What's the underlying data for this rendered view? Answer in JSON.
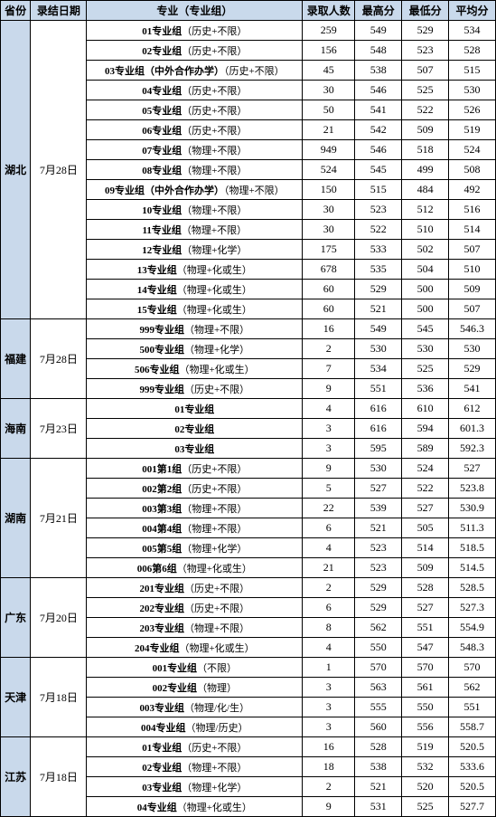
{
  "headers": [
    "省份",
    "录结日期",
    "专业（专业组）",
    "录取人数",
    "最高分",
    "最低分",
    "平均分"
  ],
  "provinces": [
    {
      "name": "湖北",
      "date": "7月28日",
      "rows": [
        {
          "maj": "01专业组",
          "req": "（历史+不限）",
          "n": 259,
          "hi": 549,
          "lo": 529,
          "avg": 534
        },
        {
          "maj": "02专业组",
          "req": "（历史+不限）",
          "n": 156,
          "hi": 548,
          "lo": 523,
          "avg": 528
        },
        {
          "maj": "03专业组（中外合作办学）",
          "req": "（历史+不限）",
          "n": 45,
          "hi": 538,
          "lo": 507,
          "avg": 515
        },
        {
          "maj": "04专业组",
          "req": "（历史+不限）",
          "n": 30,
          "hi": 546,
          "lo": 525,
          "avg": 530
        },
        {
          "maj": "05专业组",
          "req": "（历史+不限）",
          "n": 50,
          "hi": 541,
          "lo": 522,
          "avg": 526
        },
        {
          "maj": "06专业组",
          "req": "（历史+不限）",
          "n": 21,
          "hi": 542,
          "lo": 509,
          "avg": 519
        },
        {
          "maj": "07专业组",
          "req": "（物理+不限）",
          "n": 949,
          "hi": 546,
          "lo": 518,
          "avg": 524
        },
        {
          "maj": "08专业组",
          "req": "（物理+不限）",
          "n": 524,
          "hi": 545,
          "lo": 499,
          "avg": 508
        },
        {
          "maj": "09专业组（中外合作办学）",
          "req": "（物理+不限）",
          "n": 150,
          "hi": 515,
          "lo": 484,
          "avg": 492
        },
        {
          "maj": "10专业组",
          "req": "（物理+不限）",
          "n": 30,
          "hi": 523,
          "lo": 512,
          "avg": 516
        },
        {
          "maj": "11专业组",
          "req": "（物理+不限）",
          "n": 30,
          "hi": 522,
          "lo": 510,
          "avg": 514
        },
        {
          "maj": "12专业组",
          "req": "（物理+化学）",
          "n": 175,
          "hi": 533,
          "lo": 502,
          "avg": 507
        },
        {
          "maj": "13专业组",
          "req": "（物理+化或生）",
          "n": 678,
          "hi": 535,
          "lo": 504,
          "avg": 510
        },
        {
          "maj": "14专业组",
          "req": "（物理+化或生）",
          "n": 60,
          "hi": 529,
          "lo": 500,
          "avg": 509
        },
        {
          "maj": "15专业组",
          "req": "（物理+化或生）",
          "n": 60,
          "hi": 521,
          "lo": 500,
          "avg": 507
        }
      ]
    },
    {
      "name": "福建",
      "date": "7月28日",
      "rows": [
        {
          "maj": "999专业组",
          "req": "（物理+不限）",
          "n": 16,
          "hi": 549,
          "lo": 545,
          "avg": "546.3"
        },
        {
          "maj": "500专业组",
          "req": "（物理+化学）",
          "n": 2,
          "hi": 530,
          "lo": 530,
          "avg": 530
        },
        {
          "maj": "506专业组",
          "req": "（物理+化或生）",
          "n": 7,
          "hi": 534,
          "lo": 525,
          "avg": 529
        },
        {
          "maj": "999专业组",
          "req": "（历史+不限）",
          "n": 9,
          "hi": 551,
          "lo": 536,
          "avg": 541
        }
      ]
    },
    {
      "name": "海南",
      "date": "7月23日",
      "rows": [
        {
          "maj": "01专业组",
          "req": "",
          "n": 4,
          "hi": 616,
          "lo": 610,
          "avg": 612
        },
        {
          "maj": "02专业组",
          "req": "",
          "n": 3,
          "hi": 616,
          "lo": 594,
          "avg": "601.3"
        },
        {
          "maj": "03专业组",
          "req": "",
          "n": 3,
          "hi": 595,
          "lo": 589,
          "avg": "592.3"
        }
      ]
    },
    {
      "name": "湖南",
      "date": "7月21日",
      "rows": [
        {
          "maj": "001第1组",
          "req": "（历史+不限）",
          "n": 9,
          "hi": 530,
          "lo": 524,
          "avg": 527
        },
        {
          "maj": "002第2组",
          "req": "（历史+不限）",
          "n": 5,
          "hi": 527,
          "lo": 522,
          "avg": "523.8"
        },
        {
          "maj": "003第3组",
          "req": "（物理+不限）",
          "n": 22,
          "hi": 539,
          "lo": 527,
          "avg": "530.9"
        },
        {
          "maj": "004第4组",
          "req": "（物理+不限）",
          "n": 6,
          "hi": 521,
          "lo": 505,
          "avg": "511.3"
        },
        {
          "maj": "005第5组",
          "req": "（物理+化学）",
          "n": 4,
          "hi": 523,
          "lo": 514,
          "avg": "518.5"
        },
        {
          "maj": "006第6组",
          "req": "（物理+化或生）",
          "n": 21,
          "hi": 523,
          "lo": 509,
          "avg": "514.5"
        }
      ]
    },
    {
      "name": "广东",
      "date": "7月20日",
      "rows": [
        {
          "maj": "201专业组",
          "req": "（历史+不限）",
          "n": 2,
          "hi": 529,
          "lo": 528,
          "avg": "528.5"
        },
        {
          "maj": "202专业组",
          "req": "（历史+不限）",
          "n": 6,
          "hi": 529,
          "lo": 527,
          "avg": "527.3"
        },
        {
          "maj": "203专业组",
          "req": "（物理+不限）",
          "n": 8,
          "hi": 562,
          "lo": 551,
          "avg": "554.9"
        },
        {
          "maj": "204专业组",
          "req": "（物理+化或生）",
          "n": 4,
          "hi": 550,
          "lo": 547,
          "avg": "548.3"
        }
      ]
    },
    {
      "name": "天津",
      "date": "7月18日",
      "rows": [
        {
          "maj": "001专业组",
          "req": "（不限）",
          "n": 1,
          "hi": 570,
          "lo": 570,
          "avg": 570
        },
        {
          "maj": "002专业组",
          "req": "（物理）",
          "n": 3,
          "hi": 563,
          "lo": 561,
          "avg": 562
        },
        {
          "maj": "003专业组",
          "req": "（物理/化/生）",
          "n": 3,
          "hi": 555,
          "lo": 550,
          "avg": 551
        },
        {
          "maj": "004专业组",
          "req": "（物理/历史）",
          "n": 3,
          "hi": 560,
          "lo": 556,
          "avg": "558.7"
        }
      ]
    },
    {
      "name": "江苏",
      "date": "7月18日",
      "rows": [
        {
          "maj": "01专业组",
          "req": "（历史+不限）",
          "n": 16,
          "hi": 528,
          "lo": 519,
          "avg": "520.5"
        },
        {
          "maj": "02专业组",
          "req": "（物理+不限）",
          "n": 18,
          "hi": 538,
          "lo": 532,
          "avg": "533.6"
        },
        {
          "maj": "03专业组",
          "req": "（物理+化学）",
          "n": 2,
          "hi": 521,
          "lo": 520,
          "avg": "520.5"
        },
        {
          "maj": "04专业组",
          "req": "（物理+化或生）",
          "n": 9,
          "hi": 531,
          "lo": 525,
          "avg": "527.7"
        }
      ]
    }
  ]
}
